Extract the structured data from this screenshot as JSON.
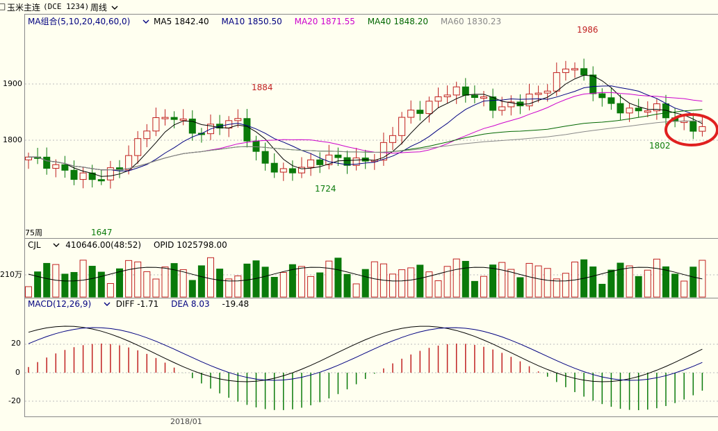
{
  "header": {
    "menu_glyph": "□",
    "instrument": "玉米主连",
    "code": "(DCE 1234)",
    "period": "周线"
  },
  "price_panel": {
    "ma_selector": "MA组合(5,10,20,40,60,0)",
    "ma5": "MA5 1842.40",
    "ma10": "MA10 1850.50",
    "ma20": "MA20 1871.55",
    "ma40": "MA40 1848.20",
    "ma60": "MA60 1830.23",
    "y_ticks": [
      "1900",
      "1800"
    ],
    "bar_count": "75周",
    "annot_high": "1986",
    "annot_1884": "1884",
    "annot_1724": "1724",
    "annot_1647": "1647",
    "annot_1802": "1802"
  },
  "volume_panel": {
    "selector": "CJL",
    "volume": "410646.00(48:52)",
    "opid": "OPID 1025798.00",
    "y_tick": "210万"
  },
  "macd_panel": {
    "selector": "MACD(12,26,9)",
    "diff": "DIFF -1.71",
    "dea": "DEA 8.03",
    "macd": "-19.48",
    "y_ticks": [
      "20",
      "0",
      "-20"
    ]
  },
  "x_axis": {
    "date_label": "2018/01"
  },
  "colors": {
    "up": "#c02020",
    "down": "#0a7a0a",
    "ma5": "#000000",
    "ma10": "#000080",
    "ma20": "#cc00cc",
    "ma40": "#006600",
    "ma60": "#888888",
    "highlight": "#e02020"
  },
  "icons": {
    "dropdown": "chevron-down-icon",
    "annotation": "red-ellipse-highlight"
  }
}
